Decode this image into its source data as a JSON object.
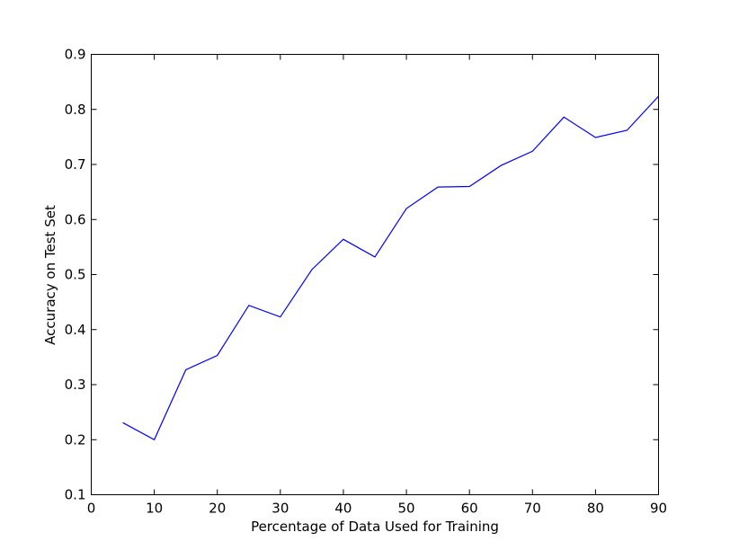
{
  "chart_data": {
    "type": "line",
    "xlabel": "Percentage of Data Used for Training",
    "ylabel": "Accuracy on Test Set",
    "xlim": [
      0,
      90
    ],
    "ylim": [
      0.1,
      0.9
    ],
    "xticks": [
      0,
      10,
      20,
      30,
      40,
      50,
      60,
      70,
      80,
      90
    ],
    "xtick_labels": [
      "0",
      "10",
      "20",
      "30",
      "40",
      "50",
      "60",
      "70",
      "80",
      "90"
    ],
    "yticks": [
      0.1,
      0.2,
      0.3,
      0.4,
      0.5,
      0.6,
      0.7,
      0.8,
      0.9
    ],
    "ytick_labels": [
      "0.1",
      "0.2",
      "0.3",
      "0.4",
      "0.5",
      "0.6",
      "0.7",
      "0.8",
      "0.9"
    ],
    "grid": false,
    "legend": false,
    "series": [
      {
        "color": "#0000ff",
        "x": [
          5,
          10,
          15,
          20,
          25,
          30,
          35,
          40,
          45,
          50,
          55,
          60,
          65,
          70,
          75,
          80,
          85,
          90
        ],
        "y": [
          0.231,
          0.2,
          0.327,
          0.353,
          0.444,
          0.423,
          0.509,
          0.564,
          0.532,
          0.62,
          0.659,
          0.66,
          0.698,
          0.724,
          0.786,
          0.749,
          0.762,
          0.824
        ]
      }
    ]
  }
}
